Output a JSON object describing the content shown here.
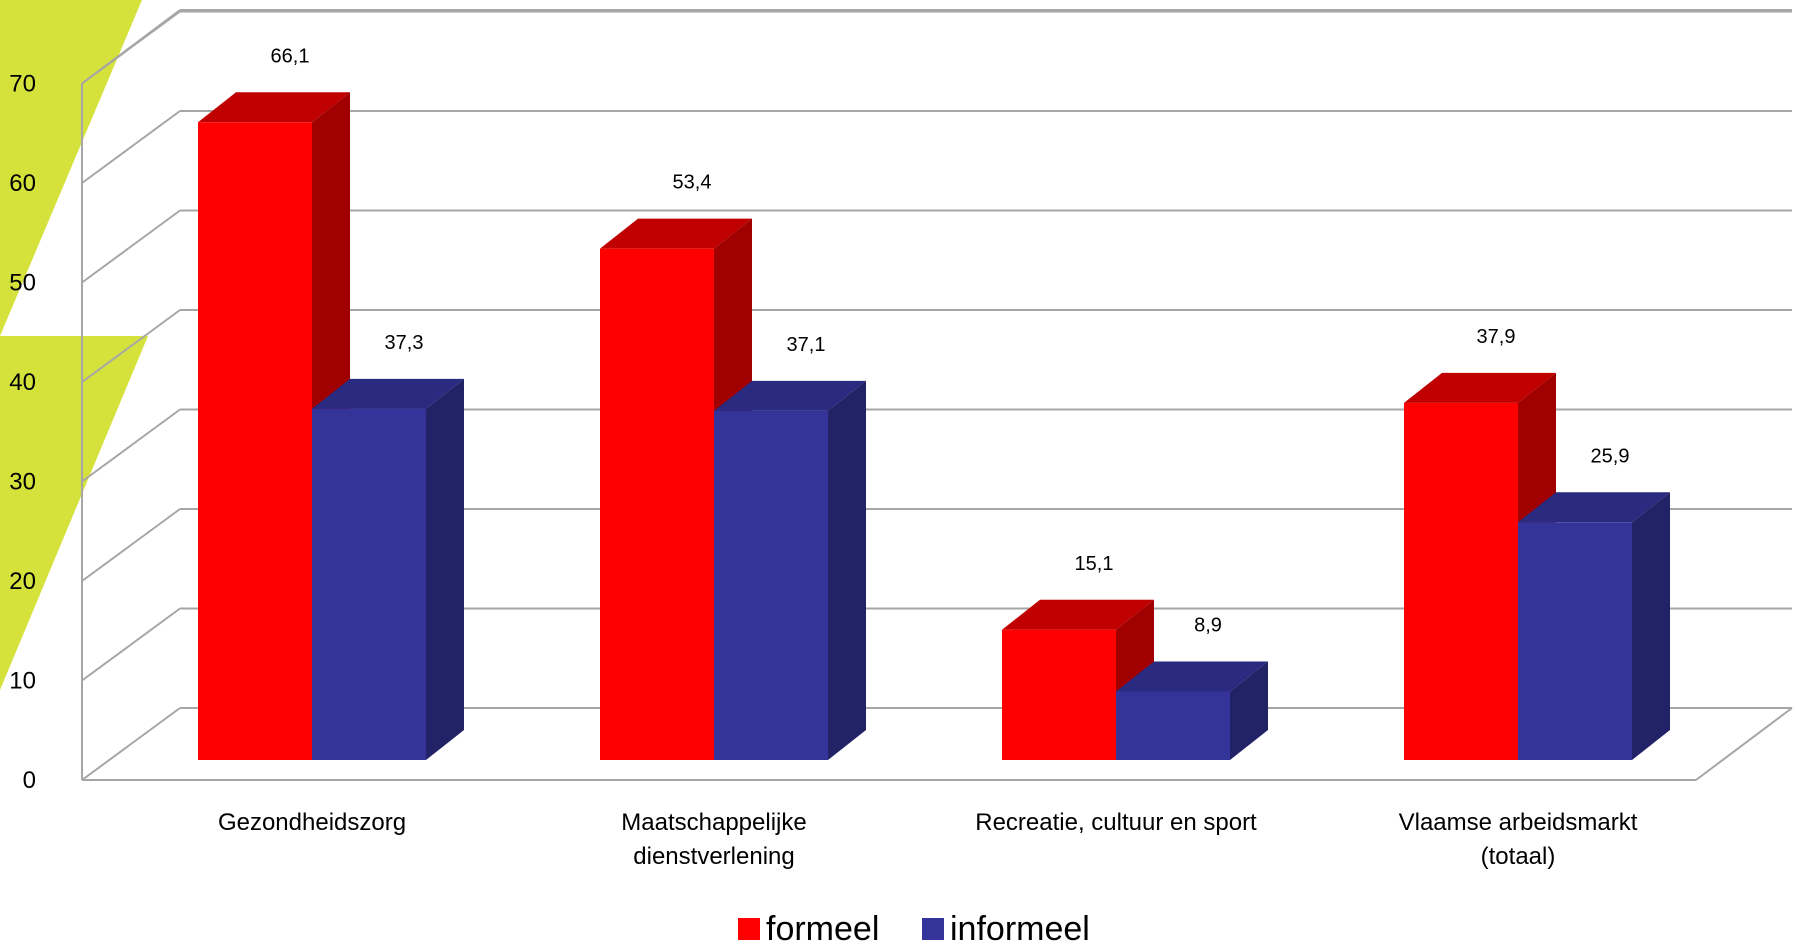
{
  "chart_data": {
    "type": "bar",
    "style": "3d-clustered-column",
    "categories": [
      [
        "Gezondheidszorg"
      ],
      [
        "Maatschappelijke",
        "dienstverlening"
      ],
      [
        "Recreatie, cultuur en sport"
      ],
      [
        "Vlaamse arbeidsmarkt",
        "(totaal)"
      ]
    ],
    "series": [
      {
        "name": "formeel",
        "values": [
          66.1,
          53.4,
          15.1,
          37.9
        ],
        "labels": [
          "66,1",
          "53,4",
          "15,1",
          "37,9"
        ]
      },
      {
        "name": "informeel",
        "values": [
          37.3,
          37.1,
          8.9,
          25.9
        ],
        "labels": [
          "37,3",
          "37,1",
          "8,9",
          "25,9"
        ]
      }
    ],
    "yticks": [
      "0",
      "10",
      "20",
      "30",
      "40",
      "50",
      "60",
      "70"
    ],
    "ylim": [
      0,
      70
    ],
    "grid": true,
    "legend_position": "bottom",
    "colors": {
      "formeel_front": "#FF0000",
      "formeel_top": "#C00000",
      "formeel_side": "#A00000",
      "informeel_front": "#333399",
      "informeel_top": "#2A2A80",
      "informeel_side": "#222266",
      "gridline": "#A6A6A6",
      "accent": "#D6E23C"
    }
  }
}
